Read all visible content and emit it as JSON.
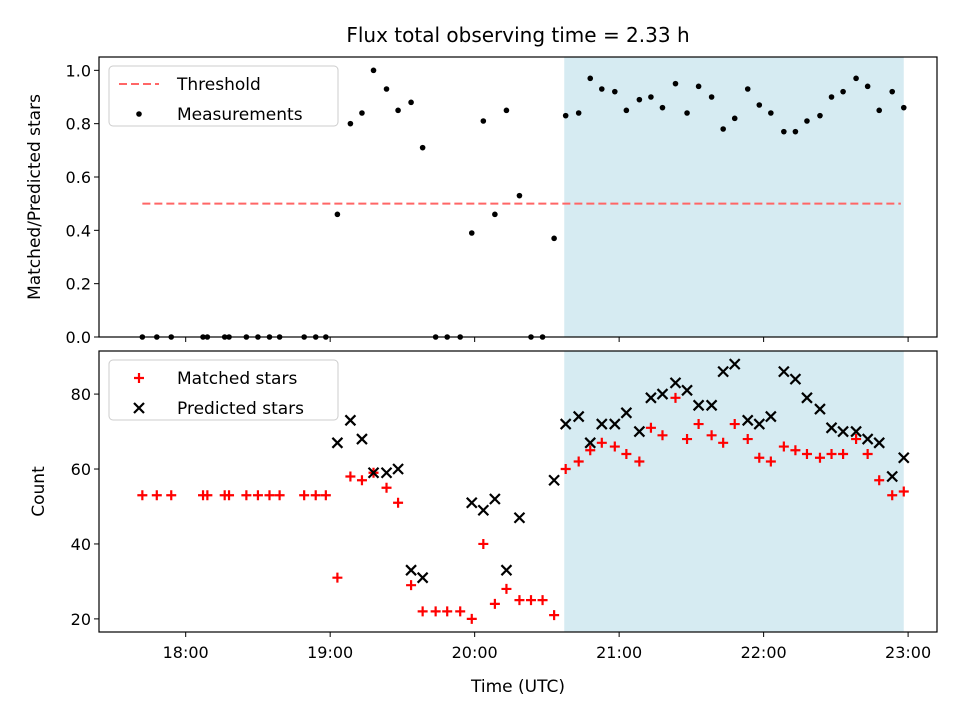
{
  "figure": {
    "title": "Flux total observing time = 2.33 h",
    "colors": {
      "shade": "#add8e6",
      "threshold": "#ff6666",
      "measurements": "#000000",
      "matched": "#ff0000",
      "predicted": "#000000"
    }
  },
  "chart_data": [
    {
      "type": "scatter",
      "ylabel": "Matched/Predicted stars",
      "xlim_hours": [
        17.4,
        23.2
      ],
      "ylim": [
        0.0,
        1.05
      ],
      "yticks": [
        0.0,
        0.2,
        0.4,
        0.6,
        0.8,
        1.0
      ],
      "ytick_labels": [
        "0.0",
        "0.2",
        "0.4",
        "0.6",
        "0.8",
        "1.0"
      ],
      "shaded_span_hours": [
        20.62,
        22.97
      ],
      "legend_position": "upper left",
      "legend": [
        "Threshold",
        "Measurements"
      ],
      "threshold": {
        "name": "Threshold",
        "value": 0.5,
        "x_range_hours": [
          17.7,
          22.95
        ]
      },
      "series": [
        {
          "name": "Measurements",
          "x": [
            17.7,
            17.8,
            17.9,
            18.12,
            18.15,
            18.27,
            18.3,
            18.42,
            18.5,
            18.58,
            18.65,
            18.82,
            18.9,
            18.97,
            19.05,
            19.14,
            19.22,
            19.3,
            19.39,
            19.47,
            19.56,
            19.64,
            19.73,
            19.81,
            19.9,
            19.98,
            20.06,
            20.14,
            20.22,
            20.31,
            20.39,
            20.47,
            20.55,
            20.63,
            20.72,
            20.8,
            20.88,
            20.97,
            21.05,
            21.14,
            21.22,
            21.3,
            21.39,
            21.47,
            21.55,
            21.64,
            21.72,
            21.8,
            21.89,
            21.97,
            22.05,
            22.14,
            22.22,
            22.3,
            22.39,
            22.47,
            22.55,
            22.64,
            22.72,
            22.8,
            22.89,
            22.97
          ],
          "y": [
            0,
            0,
            0,
            0,
            0,
            0,
            0,
            0,
            0,
            0,
            0,
            0,
            0,
            0,
            0.46,
            0.8,
            0.84,
            1.0,
            0.93,
            0.85,
            0.88,
            0.71,
            0,
            0,
            0,
            0.39,
            0.81,
            0.46,
            0.85,
            0.53,
            0,
            0,
            0.37,
            0.83,
            0.84,
            0.97,
            0.93,
            0.92,
            0.85,
            0.89,
            0.9,
            0.86,
            0.95,
            0.84,
            0.94,
            0.9,
            0.78,
            0.82,
            0.93,
            0.87,
            0.84,
            0.77,
            0.77,
            0.81,
            0.83,
            0.9,
            0.92,
            0.97,
            0.94,
            0.85,
            0.92,
            0.86
          ]
        }
      ]
    },
    {
      "type": "scatter",
      "xlabel": "Time (UTC)",
      "ylabel": "Count",
      "xlim_hours": [
        17.4,
        23.2
      ],
      "ylim": [
        16.5,
        91.5
      ],
      "yticks": [
        20,
        40,
        60,
        80
      ],
      "ytick_labels": [
        "20",
        "40",
        "60",
        "80"
      ],
      "xticks_hours": [
        18,
        19,
        20,
        21,
        22,
        23
      ],
      "xtick_labels": [
        "18:00",
        "19:00",
        "20:00",
        "21:00",
        "22:00",
        "23:00"
      ],
      "shaded_span_hours": [
        20.62,
        22.97
      ],
      "legend_position": "upper left",
      "legend": [
        "Matched stars",
        "Predicted stars"
      ],
      "series": [
        {
          "name": "Matched stars",
          "x": [
            17.7,
            17.8,
            17.9,
            18.12,
            18.15,
            18.27,
            18.3,
            18.42,
            18.5,
            18.58,
            18.65,
            18.82,
            18.9,
            18.97,
            19.05,
            19.14,
            19.22,
            19.3,
            19.39,
            19.47,
            19.56,
            19.64,
            19.73,
            19.81,
            19.9,
            19.98,
            20.06,
            20.14,
            20.22,
            20.31,
            20.39,
            20.47,
            20.55,
            20.63,
            20.72,
            20.8,
            20.88,
            20.97,
            21.05,
            21.14,
            21.22,
            21.3,
            21.39,
            21.47,
            21.55,
            21.64,
            21.72,
            21.8,
            21.89,
            21.97,
            22.05,
            22.14,
            22.22,
            22.3,
            22.39,
            22.47,
            22.55,
            22.64,
            22.72,
            22.8,
            22.89,
            22.97
          ],
          "y": [
            53,
            53,
            53,
            53,
            53,
            53,
            53,
            53,
            53,
            53,
            53,
            53,
            53,
            53,
            31,
            58,
            57,
            59,
            55,
            51,
            29,
            22,
            22,
            22,
            22,
            20,
            40,
            24,
            28,
            25,
            25,
            25,
            21,
            60,
            62,
            65,
            67,
            66,
            64,
            62,
            71,
            69,
            79,
            68,
            72,
            69,
            67,
            72,
            68,
            63,
            62,
            66,
            65,
            64,
            63,
            64,
            64,
            68,
            64,
            57,
            53,
            54
          ]
        },
        {
          "name": "Predicted stars",
          "x": [
            19.05,
            19.14,
            19.22,
            19.3,
            19.39,
            19.47,
            19.56,
            19.64,
            19.98,
            20.06,
            20.14,
            20.22,
            20.31,
            20.55,
            20.63,
            20.72,
            20.8,
            20.88,
            20.97,
            21.05,
            21.14,
            21.22,
            21.3,
            21.39,
            21.47,
            21.55,
            21.64,
            21.72,
            21.8,
            21.89,
            21.97,
            22.05,
            22.14,
            22.22,
            22.3,
            22.39,
            22.47,
            22.55,
            22.64,
            22.72,
            22.8,
            22.89,
            22.97
          ],
          "y": [
            67,
            73,
            68,
            59,
            59,
            60,
            33,
            31,
            51,
            49,
            52,
            33,
            47,
            57,
            72,
            74,
            67,
            72,
            72,
            75,
            70,
            79,
            80,
            83,
            81,
            77,
            77,
            86,
            88,
            73,
            72,
            74,
            86,
            84,
            79,
            76,
            71,
            70,
            70,
            68,
            67,
            58,
            63
          ]
        }
      ]
    }
  ]
}
